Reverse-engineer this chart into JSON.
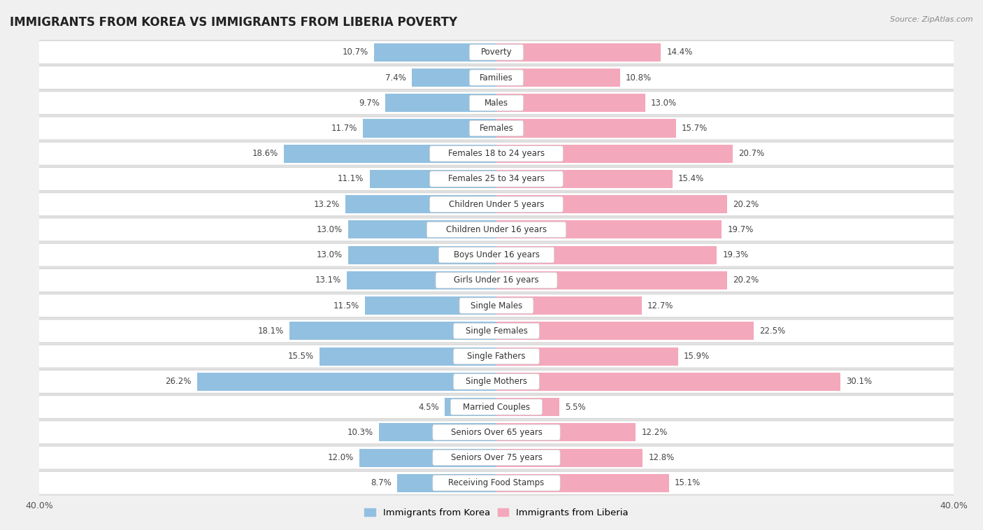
{
  "title": "IMMIGRANTS FROM KOREA VS IMMIGRANTS FROM LIBERIA POVERTY",
  "source": "Source: ZipAtlas.com",
  "categories": [
    "Poverty",
    "Families",
    "Males",
    "Females",
    "Females 18 to 24 years",
    "Females 25 to 34 years",
    "Children Under 5 years",
    "Children Under 16 years",
    "Boys Under 16 years",
    "Girls Under 16 years",
    "Single Males",
    "Single Females",
    "Single Fathers",
    "Single Mothers",
    "Married Couples",
    "Seniors Over 65 years",
    "Seniors Over 75 years",
    "Receiving Food Stamps"
  ],
  "korea_values": [
    10.7,
    7.4,
    9.7,
    11.7,
    18.6,
    11.1,
    13.2,
    13.0,
    13.0,
    13.1,
    11.5,
    18.1,
    15.5,
    26.2,
    4.5,
    10.3,
    12.0,
    8.7
  ],
  "liberia_values": [
    14.4,
    10.8,
    13.0,
    15.7,
    20.7,
    15.4,
    20.2,
    19.7,
    19.3,
    20.2,
    12.7,
    22.5,
    15.9,
    30.1,
    5.5,
    12.2,
    12.8,
    15.1
  ],
  "korea_color": "#92C0E0",
  "liberia_color": "#F4A8BC",
  "row_bg_color": "#e8e8e8",
  "row_inner_color": "#f0f0f0",
  "background_color": "#f0f0f0",
  "xlim": 40.0,
  "legend_korea": "Immigrants from Korea",
  "legend_liberia": "Immigrants from Liberia",
  "title_fontsize": 12,
  "label_fontsize": 8.5,
  "value_fontsize": 8.5
}
